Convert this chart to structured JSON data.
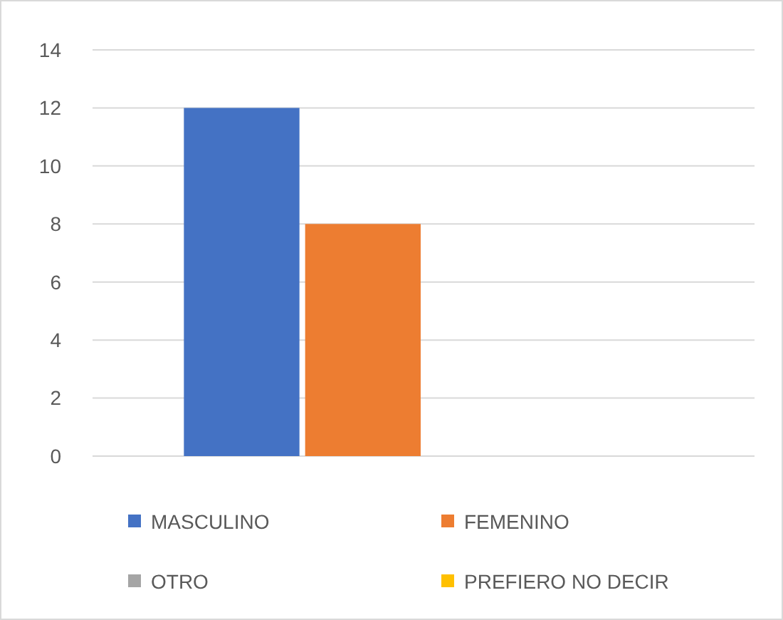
{
  "chart_data": {
    "type": "bar",
    "categories": [
      null
    ],
    "series": [
      {
        "name": "MASCULINO",
        "color": "#4472c4",
        "values": [
          12
        ]
      },
      {
        "name": "FEMENINO",
        "color": "#ed7d31",
        "values": [
          8
        ]
      },
      {
        "name": "OTRO",
        "color": "#a5a5a5",
        "values": [
          0
        ]
      },
      {
        "name": "PREFIERO NO DECIR",
        "color": "#ffc000",
        "values": [
          0
        ]
      }
    ],
    "ylim": [
      0,
      14
    ],
    "yticks": [
      0,
      2,
      4,
      6,
      8,
      10,
      12,
      14
    ],
    "grid": "y",
    "legend": "bottom"
  }
}
